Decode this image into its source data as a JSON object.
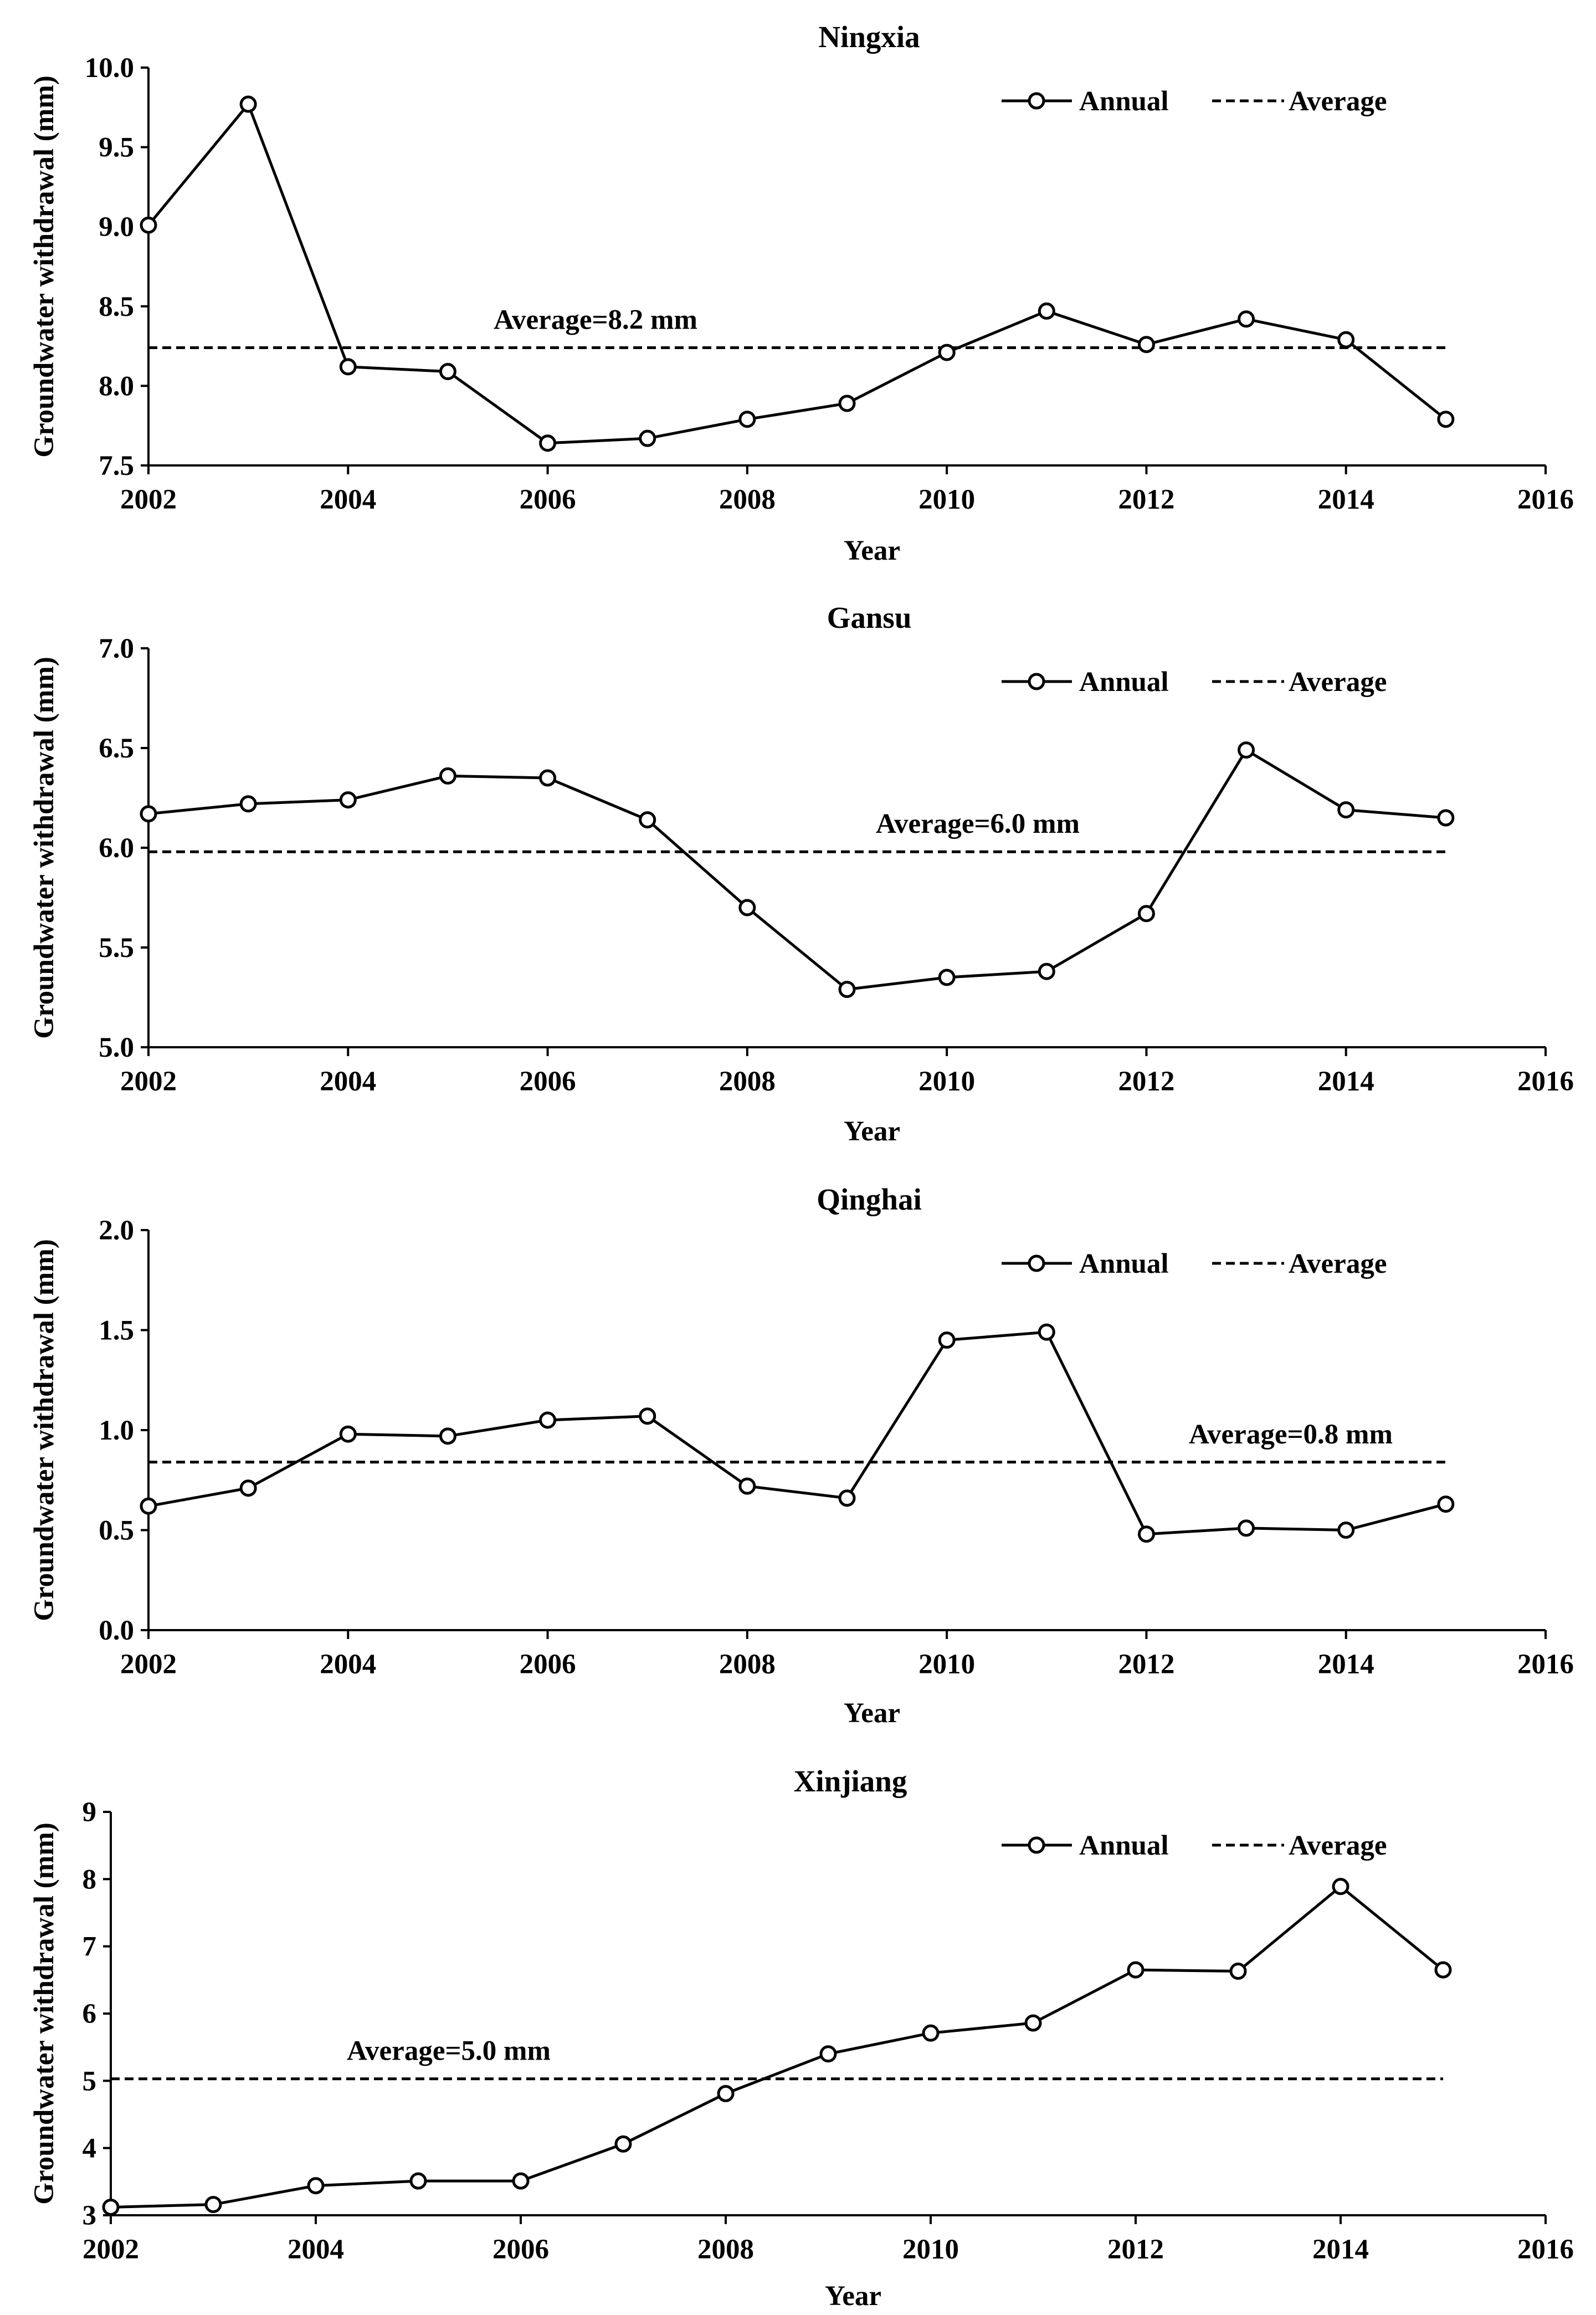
{
  "chart_data": [
    {
      "type": "line",
      "title": "Ningxia",
      "xlabel": "Year",
      "ylabel": "Groundwater withdrawal (mm)",
      "xlim": [
        2002,
        2016
      ],
      "ylim": [
        7.5,
        10.0
      ],
      "xticks": [
        2002,
        2004,
        2006,
        2008,
        2010,
        2012,
        2014,
        2016
      ],
      "yticks": [
        7.5,
        8.0,
        8.5,
        9.0,
        9.5,
        10.0
      ],
      "ytick_labels": [
        "7.5",
        "8.0",
        "8.5",
        "9.0",
        "9.5",
        "10.0"
      ],
      "x": [
        2002,
        2003,
        2004,
        2005,
        2006,
        2007,
        2008,
        2009,
        2010,
        2011,
        2012,
        2013,
        2014,
        2015
      ],
      "series": [
        {
          "name": "Annual",
          "values": [
            9.01,
            9.77,
            8.12,
            8.09,
            7.64,
            7.67,
            7.79,
            7.89,
            8.21,
            8.47,
            8.26,
            8.42,
            8.29,
            7.79
          ]
        }
      ],
      "average": {
        "name": "Average",
        "value": 8.24,
        "label": "Average=8.2 mm",
        "x_from": 2002,
        "x_to": 2015
      },
      "legend": {
        "annual": "Annual",
        "average": "Average"
      }
    },
    {
      "type": "line",
      "title": "Gansu",
      "xlabel": "Year",
      "ylabel": "Groundwater withdrawal (mm)",
      "xlim": [
        2002,
        2016
      ],
      "ylim": [
        5.0,
        7.0
      ],
      "xticks": [
        2002,
        2004,
        2006,
        2008,
        2010,
        2012,
        2014,
        2016
      ],
      "yticks": [
        5.0,
        5.5,
        6.0,
        6.5,
        7.0
      ],
      "ytick_labels": [
        "5.0",
        "5.5",
        "6.0",
        "6.5",
        "7.0"
      ],
      "x": [
        2002,
        2003,
        2004,
        2005,
        2006,
        2007,
        2008,
        2009,
        2010,
        2011,
        2012,
        2013,
        2014,
        2015
      ],
      "series": [
        {
          "name": "Annual",
          "values": [
            6.17,
            6.22,
            6.24,
            6.36,
            6.35,
            6.14,
            5.7,
            5.29,
            5.35,
            5.38,
            5.67,
            6.49,
            6.19,
            6.15
          ]
        }
      ],
      "average": {
        "name": "Average",
        "value": 5.98,
        "label": "Average=6.0 mm",
        "x_from": 2002,
        "x_to": 2015
      },
      "legend": {
        "annual": "Annual",
        "average": "Average"
      }
    },
    {
      "type": "line",
      "title": "Qinghai",
      "xlabel": "Year",
      "ylabel": "Groundwater withdrawal (mm)",
      "xlim": [
        2002,
        2016
      ],
      "ylim": [
        0.0,
        2.0
      ],
      "xticks": [
        2002,
        2004,
        2006,
        2008,
        2010,
        2012,
        2014,
        2016
      ],
      "yticks": [
        0.0,
        0.5,
        1.0,
        1.5,
        2.0
      ],
      "ytick_labels": [
        "0.0",
        "0.5",
        "1.0",
        "1.5",
        "2.0"
      ],
      "x": [
        2002,
        2003,
        2004,
        2005,
        2006,
        2007,
        2008,
        2009,
        2010,
        2011,
        2012,
        2013,
        2014,
        2015
      ],
      "series": [
        {
          "name": "Annual",
          "values": [
            0.62,
            0.71,
            0.98,
            0.97,
            1.05,
            1.07,
            0.72,
            0.66,
            1.45,
            1.49,
            0.48,
            0.51,
            0.5,
            0.63
          ]
        }
      ],
      "average": {
        "name": "Average",
        "value": 0.84,
        "label": "Average=0.8 mm",
        "x_from": 2002,
        "x_to": 2015
      },
      "legend": {
        "annual": "Annual",
        "average": "Average"
      }
    },
    {
      "type": "line",
      "title": "Xinjiang",
      "xlabel": "Year",
      "ylabel": "Groundwater withdrawal (mm)",
      "xlim": [
        2002,
        2016
      ],
      "ylim": [
        3,
        9
      ],
      "xticks": [
        2002,
        2004,
        2006,
        2008,
        2010,
        2012,
        2014,
        2016
      ],
      "yticks": [
        3,
        4,
        5,
        6,
        7,
        8,
        9
      ],
      "ytick_labels": [
        "3",
        "4",
        "5",
        "6",
        "7",
        "8",
        "9"
      ],
      "x": [
        2002,
        2003,
        2004,
        2005,
        2006,
        2007,
        2008,
        2009,
        2010,
        2011,
        2012,
        2013,
        2014,
        2015
      ],
      "series": [
        {
          "name": "Annual",
          "values": [
            3.12,
            3.16,
            3.44,
            3.51,
            3.51,
            4.06,
            4.81,
            5.4,
            5.71,
            5.86,
            6.65,
            6.63,
            7.89,
            6.65
          ]
        }
      ],
      "average": {
        "name": "Average",
        "value": 5.03,
        "label": "Average=5.0 mm",
        "x_from": 2002,
        "x_to": 2015
      },
      "legend": {
        "annual": "Annual",
        "average": "Average"
      }
    }
  ]
}
